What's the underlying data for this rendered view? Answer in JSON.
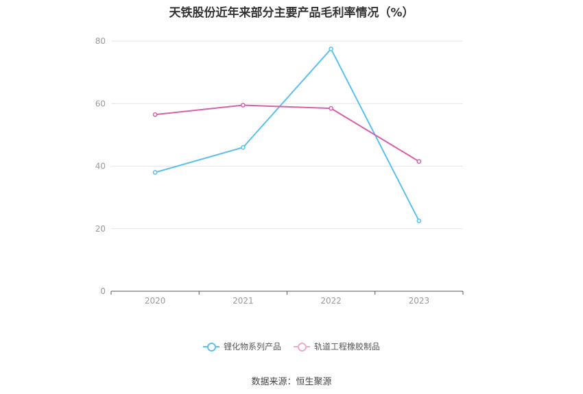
{
  "chart_data": {
    "type": "line",
    "title": "天铁股份近年来部分主要产品毛利率情况（%）",
    "categories": [
      "2020",
      "2021",
      "2022",
      "2023"
    ],
    "ylim": [
      0,
      80
    ],
    "yticks": [
      0,
      20,
      40,
      60,
      80
    ],
    "grid": true,
    "legend_position": "bottom",
    "series": [
      {
        "name": "锂化物系列产品",
        "color": "#5bc0eb",
        "values": [
          38.0,
          46.0,
          77.5,
          22.5
        ]
      },
      {
        "name": "轨道工程橡胶制品",
        "color": "#d660a8",
        "values": [
          56.5,
          59.5,
          58.5,
          41.5
        ]
      }
    ]
  },
  "source": "数据来源：恒生聚源"
}
